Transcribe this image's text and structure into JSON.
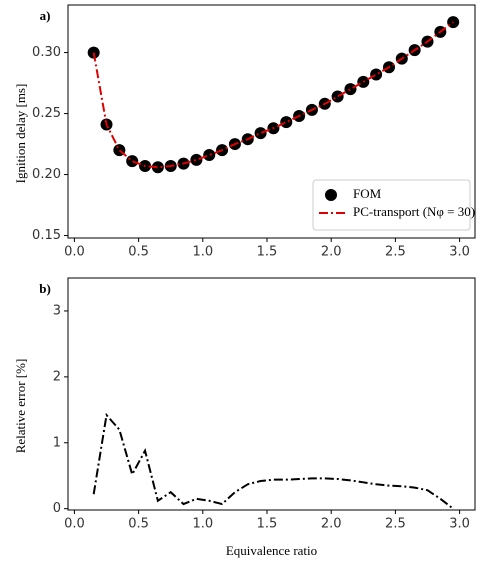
{
  "chart_data": [
    {
      "type": "line",
      "panel_label": "a)",
      "y_label": "Ignition delay [ms]",
      "x": [
        0.15,
        0.25,
        0.35,
        0.45,
        0.55,
        0.65,
        0.75,
        0.85,
        0.95,
        1.05,
        1.15,
        1.25,
        1.35,
        1.45,
        1.55,
        1.65,
        1.75,
        1.85,
        1.95,
        2.05,
        2.15,
        2.25,
        2.35,
        2.45,
        2.55,
        2.65,
        2.75,
        2.85,
        2.95
      ],
      "series": [
        {
          "name": "FOM",
          "color": "#000000",
          "mode": "markers",
          "values": [
            0.3,
            0.241,
            0.22,
            0.211,
            0.207,
            0.206,
            0.207,
            0.209,
            0.212,
            0.216,
            0.22,
            0.225,
            0.229,
            0.234,
            0.238,
            0.243,
            0.248,
            0.253,
            0.258,
            0.264,
            0.27,
            0.276,
            0.282,
            0.288,
            0.295,
            0.302,
            0.309,
            0.317,
            0.325
          ]
        },
        {
          "name": "PC-transport (Nφ = 30)",
          "color": "#e00000",
          "mode": "dashdot",
          "values": [
            0.3,
            0.241,
            0.22,
            0.211,
            0.207,
            0.206,
            0.207,
            0.209,
            0.212,
            0.216,
            0.22,
            0.225,
            0.229,
            0.234,
            0.238,
            0.243,
            0.248,
            0.253,
            0.258,
            0.264,
            0.27,
            0.276,
            0.282,
            0.288,
            0.295,
            0.302,
            0.309,
            0.317,
            0.325
          ]
        }
      ],
      "xlim": [
        -0.05,
        3.12
      ],
      "ylim": [
        0.148,
        0.339
      ],
      "xticks": [
        {
          "value": 0,
          "label": "0.0"
        },
        {
          "value": 0.5,
          "label": "0.5"
        },
        {
          "value": 1,
          "label": "1.0"
        },
        {
          "value": 1.5,
          "label": "1.5"
        },
        {
          "value": 2,
          "label": "2.0"
        },
        {
          "value": 2.5,
          "label": "2.5"
        },
        {
          "value": 3,
          "label": "3.0"
        }
      ],
      "yticks": [
        0.15,
        {
          "value": 0.2,
          "label": "0.20"
        },
        0.25,
        {
          "value": 0.3,
          "label": "0.30"
        }
      ],
      "legend": "lower right"
    },
    {
      "type": "line",
      "panel_label": "b)",
      "y_label": "Relative error [%]",
      "x_label": "Equivalence ratio",
      "x": [
        0.15,
        0.25,
        0.35,
        0.45,
        0.55,
        0.65,
        0.75,
        0.85,
        0.95,
        1.05,
        1.15,
        1.25,
        1.35,
        1.45,
        1.55,
        1.65,
        1.75,
        1.85,
        1.95,
        2.05,
        2.15,
        2.25,
        2.35,
        2.45,
        2.55,
        2.65,
        2.75,
        2.85,
        2.95
      ],
      "series": [
        {
          "color": "#000000",
          "mode": "dashdot",
          "values": [
            0.22,
            1.42,
            1.2,
            0.52,
            0.88,
            0.12,
            0.25,
            0.07,
            0.15,
            0.12,
            0.07,
            0.25,
            0.37,
            0.42,
            0.44,
            0.44,
            0.45,
            0.46,
            0.46,
            0.45,
            0.43,
            0.4,
            0.37,
            0.35,
            0.34,
            0.32,
            0.28,
            0.15,
            0.0
          ]
        }
      ],
      "xlim": [
        -0.05,
        3.12
      ],
      "ylim": [
        -0.02,
        3.5
      ],
      "xticks": [
        {
          "value": 0,
          "label": "0.0"
        },
        {
          "value": 0.5,
          "label": "0.5"
        },
        {
          "value": 1,
          "label": "1.0"
        },
        {
          "value": 1.5,
          "label": "1.5"
        },
        {
          "value": 2,
          "label": "2.0"
        },
        {
          "value": 2.5,
          "label": "2.5"
        },
        {
          "value": 3,
          "label": "3.0"
        }
      ],
      "yticks": [
        0,
        1,
        2,
        3
      ]
    }
  ]
}
